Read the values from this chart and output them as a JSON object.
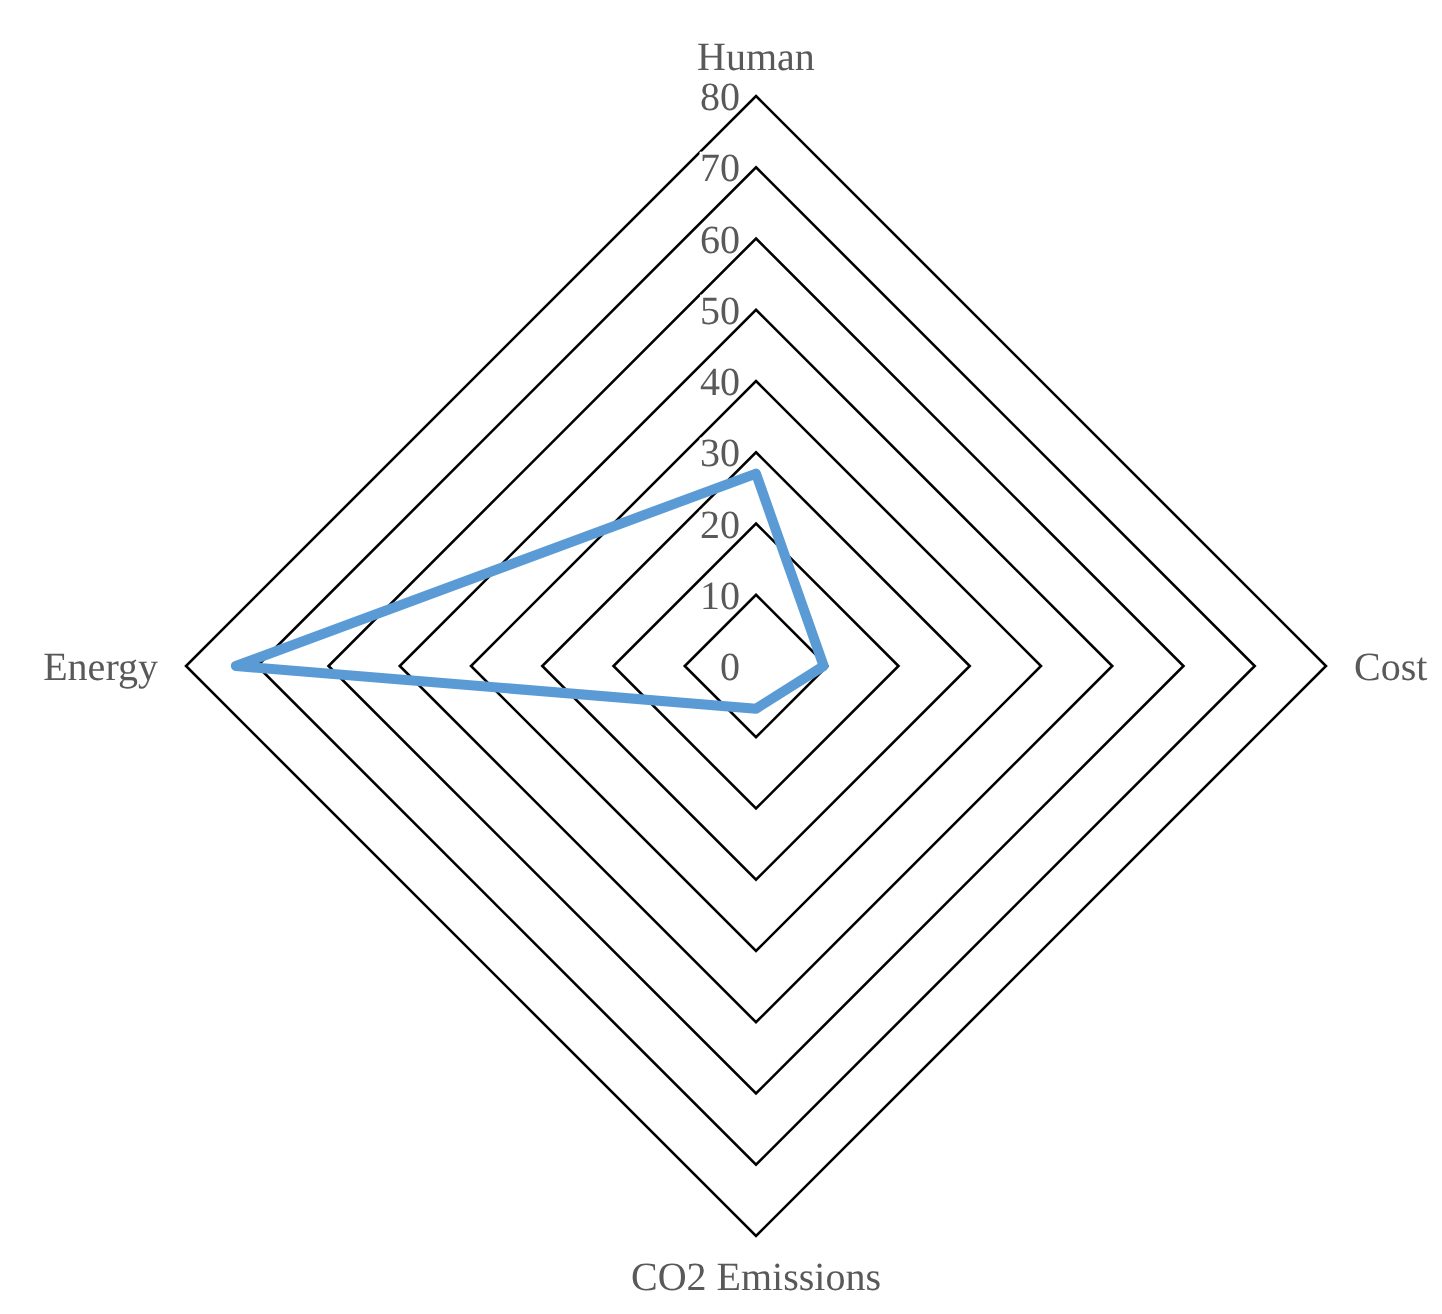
{
  "chart_data": {
    "type": "radar",
    "categories": [
      "Human",
      "Cost",
      "CO2 Emissions",
      "Energy"
    ],
    "series": [
      {
        "color": "#5b9bd5",
        "values": [
          27,
          9.5,
          6,
          73
        ]
      }
    ],
    "ylim": [
      0,
      80
    ],
    "yticks": [
      0,
      10,
      20,
      30,
      40,
      50,
      60,
      70,
      80
    ]
  }
}
